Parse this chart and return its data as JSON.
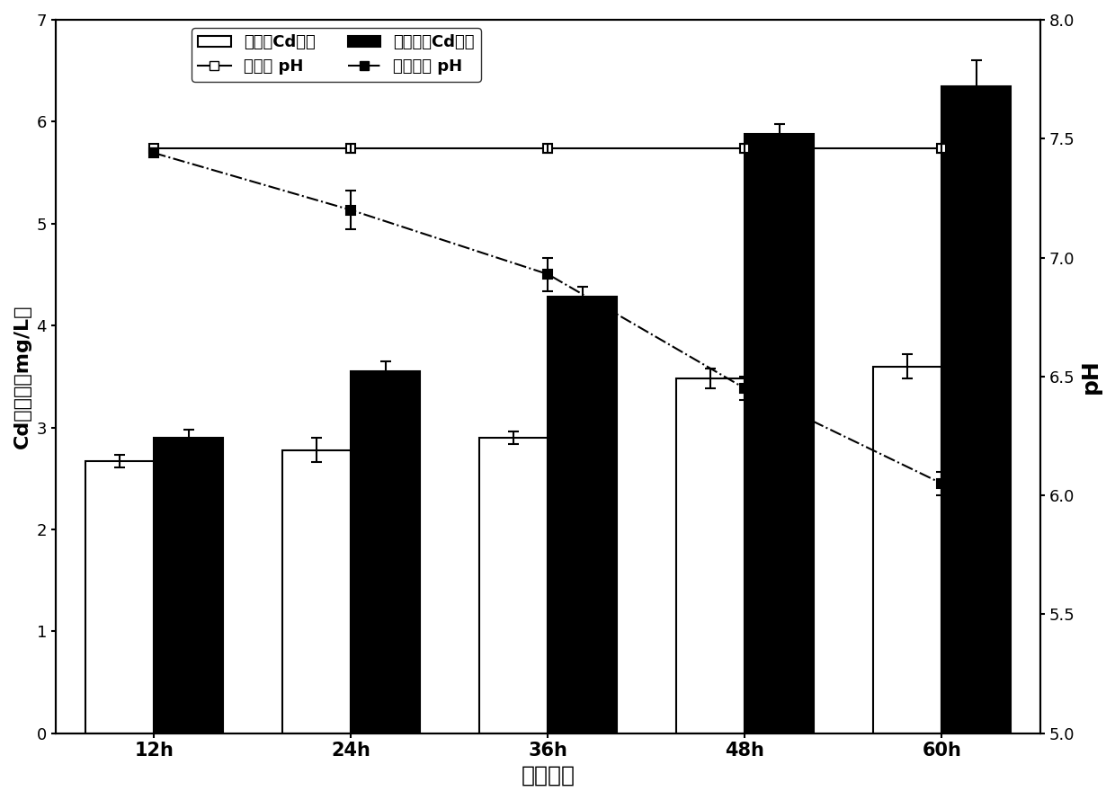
{
  "time_labels": [
    "12h",
    "24h",
    "36h",
    "48h",
    "60h"
  ],
  "x_positions": [
    1,
    2,
    3,
    4,
    5
  ],
  "bar_width": 0.35,
  "inoculated_cd": [
    2.67,
    2.78,
    2.9,
    3.48,
    3.6
  ],
  "inoculated_cd_err": [
    0.06,
    0.12,
    0.06,
    0.1,
    0.12
  ],
  "uninoculated_cd": [
    2.9,
    3.55,
    4.28,
    5.88,
    6.35
  ],
  "uninoculated_cd_err": [
    0.08,
    0.1,
    0.1,
    0.1,
    0.25
  ],
  "inoculated_ph": [
    7.46,
    7.46,
    7.46,
    7.46,
    7.46
  ],
  "inoculated_ph_err": [
    0.0,
    0.02,
    0.02,
    0.02,
    0.02
  ],
  "uninoculated_ph": [
    7.44,
    7.2,
    6.93,
    6.45,
    6.05
  ],
  "uninoculated_ph_err": [
    0.02,
    0.08,
    0.07,
    0.05,
    0.05
  ],
  "cd_ylim": [
    0,
    7
  ],
  "cd_yticks": [
    0,
    1,
    2,
    3,
    4,
    5,
    6,
    7
  ],
  "ph_ylim": [
    5.0,
    8.0
  ],
  "ph_yticks": [
    5.0,
    5.5,
    6.0,
    6.5,
    7.0,
    7.5,
    8.0
  ],
  "xlabel": "培养时间",
  "ylabel_left": "Cd的含量（mg/L）",
  "ylabel_right": "pH",
  "legend_inoculated_cd": "接菌组Cd含量",
  "legend_uninoculated_cd": "未接菌组Cd含量",
  "legend_inoculated_ph": "接菌组 pH",
  "legend_uninoculated_ph": "未接菌组 pH",
  "bar_color_inoculated": "#ffffff",
  "bar_color_uninoculated": "#000000",
  "bar_edgecolor": "#000000",
  "line_color": "#000000",
  "background_color": "#ffffff"
}
